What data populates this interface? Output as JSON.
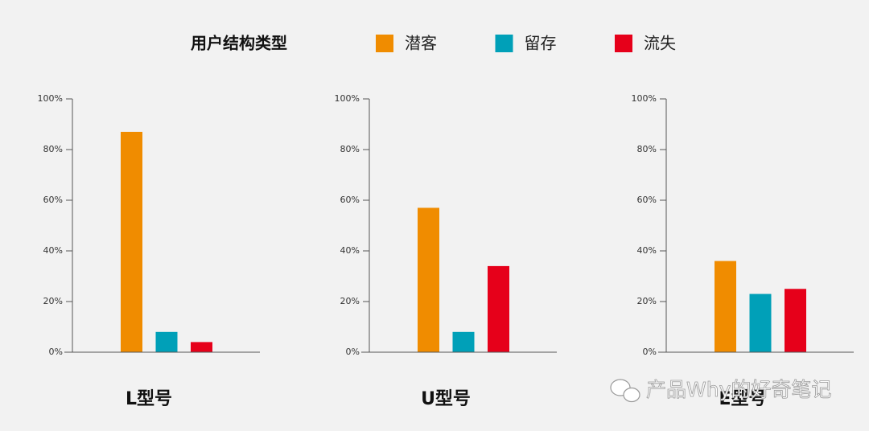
{
  "chart_data": {
    "type": "bar",
    "legend_title": "用户结构类型",
    "categories": [
      "L型号",
      "U型号",
      "E型号"
    ],
    "series": [
      {
        "name": "潜客",
        "color": "#f08c00",
        "values": [
          87,
          57,
          36
        ]
      },
      {
        "name": "留存",
        "color": "#00a0b8",
        "values": [
          8,
          8,
          23
        ]
      },
      {
        "name": "流失",
        "color": "#e6001a",
        "values": [
          4,
          34,
          25
        ]
      }
    ],
    "ylim": [
      0,
      100
    ],
    "yticks": [
      {
        "value": 0,
        "label": "0%"
      },
      {
        "value": 20,
        "label": "20%"
      },
      {
        "value": 40,
        "label": "40%"
      },
      {
        "value": 60,
        "label": "60%"
      },
      {
        "value": 80,
        "label": "80%"
      },
      {
        "value": 100,
        "label": "100%"
      }
    ]
  },
  "watermark": "产品Why的好奇笔记"
}
